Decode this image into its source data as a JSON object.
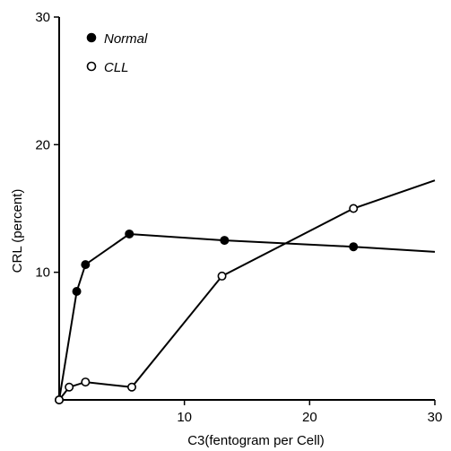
{
  "chart_data": {
    "type": "line",
    "title": "",
    "xlabel": "C3(fentogram per Cell)",
    "ylabel": "CRL (percent)",
    "xlim": [
      0,
      30
    ],
    "ylim": [
      0,
      30
    ],
    "x_ticks": [
      10,
      20,
      30
    ],
    "x_tick_labels": [
      "10",
      "20",
      "30"
    ],
    "y_ticks": [
      10,
      20,
      30
    ],
    "y_tick_labels": [
      "10",
      "20",
      "30"
    ],
    "grid": false,
    "legend_position": "top-left",
    "series": [
      {
        "name": "Normal",
        "marker": "filled-circle",
        "x": [
          0,
          1.4,
          2.1,
          5.6,
          13.2,
          23.5,
          30
        ],
        "y": [
          0,
          8.5,
          10.6,
          13.0,
          12.5,
          12.0,
          11.6
        ],
        "marked": [
          true,
          true,
          true,
          true,
          true,
          true,
          false
        ]
      },
      {
        "name": "CLL",
        "marker": "open-circle",
        "x": [
          0,
          0.8,
          2.1,
          5.8,
          13.0,
          23.5,
          30
        ],
        "y": [
          0,
          1.0,
          1.4,
          1.0,
          9.7,
          15.0,
          17.2
        ],
        "marked": [
          true,
          true,
          true,
          true,
          true,
          true,
          false
        ]
      }
    ]
  }
}
